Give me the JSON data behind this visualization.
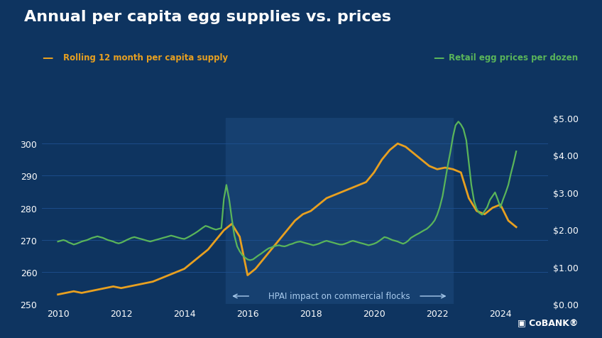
{
  "title": "Annual per capita egg supplies vs. prices",
  "bg_color": "#0e3460",
  "shade_color": "#164070",
  "title_color": "#ffffff",
  "grid_color": "#1e5090",
  "legend_left_label": "Rolling 12 month per capita supply",
  "legend_right_label": "Retail egg prices per dozen",
  "legend_left_color": "#e8a020",
  "legend_right_color": "#5ab55a",
  "annotation_text": "HPAI impact on commercial flocks",
  "annotation_color": "#aaccee",
  "shade_start": 2015.3,
  "shade_end": 2022.5,
  "ylim_left": [
    250,
    308
  ],
  "ylim_right": [
    0.0,
    5.0
  ],
  "yticks_left": [
    250,
    260,
    270,
    280,
    290,
    300
  ],
  "yticks_right": [
    0.0,
    1.0,
    2.0,
    3.0,
    4.0,
    5.0
  ],
  "xticks": [
    2010,
    2012,
    2014,
    2016,
    2018,
    2020,
    2022,
    2024
  ],
  "xlim": [
    2009.5,
    2025.5
  ],
  "supply_x": [
    2010.0,
    2010.25,
    2010.5,
    2010.75,
    2011.0,
    2011.25,
    2011.5,
    2011.75,
    2012.0,
    2012.25,
    2012.5,
    2012.75,
    2013.0,
    2013.25,
    2013.5,
    2013.75,
    2014.0,
    2014.25,
    2014.5,
    2014.75,
    2015.0,
    2015.25,
    2015.5,
    2015.75,
    2016.0,
    2016.25,
    2016.5,
    2016.75,
    2017.0,
    2017.25,
    2017.5,
    2017.75,
    2018.0,
    2018.25,
    2018.5,
    2018.75,
    2019.0,
    2019.25,
    2019.5,
    2019.75,
    2020.0,
    2020.25,
    2020.5,
    2020.75,
    2021.0,
    2021.25,
    2021.5,
    2021.75,
    2022.0,
    2022.25,
    2022.5,
    2022.75,
    2023.0,
    2023.25,
    2023.5,
    2023.75,
    2024.0,
    2024.25,
    2024.5
  ],
  "supply_y": [
    253,
    253.5,
    254,
    253.5,
    254,
    254.5,
    255,
    255.5,
    255,
    255.5,
    256,
    256.5,
    257,
    258,
    259,
    260,
    261,
    263,
    265,
    267,
    270,
    273,
    275,
    271,
    259,
    261,
    264,
    267,
    270,
    273,
    276,
    278,
    279,
    281,
    283,
    284,
    285,
    286,
    287,
    288,
    291,
    295,
    298,
    300,
    299,
    297,
    295,
    293,
    292,
    292.5,
    292,
    291,
    283,
    279,
    278,
    280,
    281,
    276,
    274
  ],
  "price_x": [
    2010.0,
    2010.08,
    2010.17,
    2010.25,
    2010.33,
    2010.42,
    2010.5,
    2010.58,
    2010.67,
    2010.75,
    2010.83,
    2010.92,
    2011.0,
    2011.08,
    2011.17,
    2011.25,
    2011.33,
    2011.42,
    2011.5,
    2011.58,
    2011.67,
    2011.75,
    2011.83,
    2011.92,
    2012.0,
    2012.08,
    2012.17,
    2012.25,
    2012.33,
    2012.42,
    2012.5,
    2012.58,
    2012.67,
    2012.75,
    2012.83,
    2012.92,
    2013.0,
    2013.08,
    2013.17,
    2013.25,
    2013.33,
    2013.42,
    2013.5,
    2013.58,
    2013.67,
    2013.75,
    2013.83,
    2013.92,
    2014.0,
    2014.08,
    2014.17,
    2014.25,
    2014.33,
    2014.42,
    2014.5,
    2014.58,
    2014.67,
    2014.75,
    2014.83,
    2014.92,
    2015.0,
    2015.08,
    2015.17,
    2015.25,
    2015.33,
    2015.42,
    2015.5,
    2015.58,
    2015.67,
    2015.75,
    2015.83,
    2015.92,
    2016.0,
    2016.08,
    2016.17,
    2016.25,
    2016.33,
    2016.42,
    2016.5,
    2016.58,
    2016.67,
    2016.75,
    2016.83,
    2016.92,
    2017.0,
    2017.08,
    2017.17,
    2017.25,
    2017.33,
    2017.42,
    2017.5,
    2017.58,
    2017.67,
    2017.75,
    2017.83,
    2017.92,
    2018.0,
    2018.08,
    2018.17,
    2018.25,
    2018.33,
    2018.42,
    2018.5,
    2018.58,
    2018.67,
    2018.75,
    2018.83,
    2018.92,
    2019.0,
    2019.08,
    2019.17,
    2019.25,
    2019.33,
    2019.42,
    2019.5,
    2019.58,
    2019.67,
    2019.75,
    2019.83,
    2019.92,
    2020.0,
    2020.08,
    2020.17,
    2020.25,
    2020.33,
    2020.42,
    2020.5,
    2020.58,
    2020.67,
    2020.75,
    2020.83,
    2020.92,
    2021.0,
    2021.08,
    2021.17,
    2021.25,
    2021.33,
    2021.42,
    2021.5,
    2021.58,
    2021.67,
    2021.75,
    2021.83,
    2021.92,
    2022.0,
    2022.08,
    2022.17,
    2022.25,
    2022.33,
    2022.42,
    2022.5,
    2022.58,
    2022.67,
    2022.75,
    2022.83,
    2022.92,
    2023.0,
    2023.08,
    2023.17,
    2023.25,
    2023.33,
    2023.42,
    2023.5,
    2023.58,
    2023.67,
    2023.75,
    2023.83,
    2023.92,
    2024.0,
    2024.08,
    2024.17,
    2024.25,
    2024.33,
    2024.42,
    2024.5
  ],
  "price_y": [
    1.68,
    1.7,
    1.72,
    1.7,
    1.66,
    1.63,
    1.6,
    1.62,
    1.65,
    1.68,
    1.7,
    1.72,
    1.75,
    1.78,
    1.8,
    1.82,
    1.8,
    1.78,
    1.75,
    1.72,
    1.7,
    1.68,
    1.65,
    1.63,
    1.65,
    1.68,
    1.72,
    1.75,
    1.78,
    1.8,
    1.78,
    1.76,
    1.74,
    1.72,
    1.7,
    1.68,
    1.7,
    1.72,
    1.74,
    1.76,
    1.78,
    1.8,
    1.82,
    1.84,
    1.82,
    1.8,
    1.78,
    1.76,
    1.75,
    1.78,
    1.82,
    1.86,
    1.9,
    1.95,
    2.0,
    2.05,
    2.1,
    2.08,
    2.05,
    2.02,
    2.0,
    2.02,
    2.04,
    2.82,
    3.2,
    2.8,
    2.3,
    1.85,
    1.55,
    1.42,
    1.32,
    1.25,
    1.2,
    1.18,
    1.2,
    1.25,
    1.3,
    1.35,
    1.4,
    1.45,
    1.5,
    1.52,
    1.55,
    1.57,
    1.58,
    1.56,
    1.55,
    1.57,
    1.6,
    1.62,
    1.65,
    1.67,
    1.68,
    1.66,
    1.64,
    1.62,
    1.6,
    1.58,
    1.6,
    1.62,
    1.65,
    1.68,
    1.7,
    1.68,
    1.66,
    1.64,
    1.62,
    1.6,
    1.6,
    1.62,
    1.65,
    1.68,
    1.7,
    1.68,
    1.66,
    1.64,
    1.62,
    1.6,
    1.58,
    1.6,
    1.62,
    1.65,
    1.7,
    1.75,
    1.8,
    1.78,
    1.75,
    1.72,
    1.7,
    1.68,
    1.65,
    1.62,
    1.65,
    1.7,
    1.78,
    1.82,
    1.86,
    1.9,
    1.94,
    1.98,
    2.02,
    2.08,
    2.15,
    2.25,
    2.4,
    2.6,
    2.9,
    3.3,
    3.7,
    4.1,
    4.5,
    4.8,
    4.9,
    4.82,
    4.7,
    4.4,
    3.8,
    3.2,
    2.75,
    2.55,
    2.45,
    2.4,
    2.5,
    2.6,
    2.8,
    2.9,
    3.0,
    2.8,
    2.6,
    2.8,
    3.0,
    3.2,
    3.5,
    3.8,
    4.1
  ]
}
